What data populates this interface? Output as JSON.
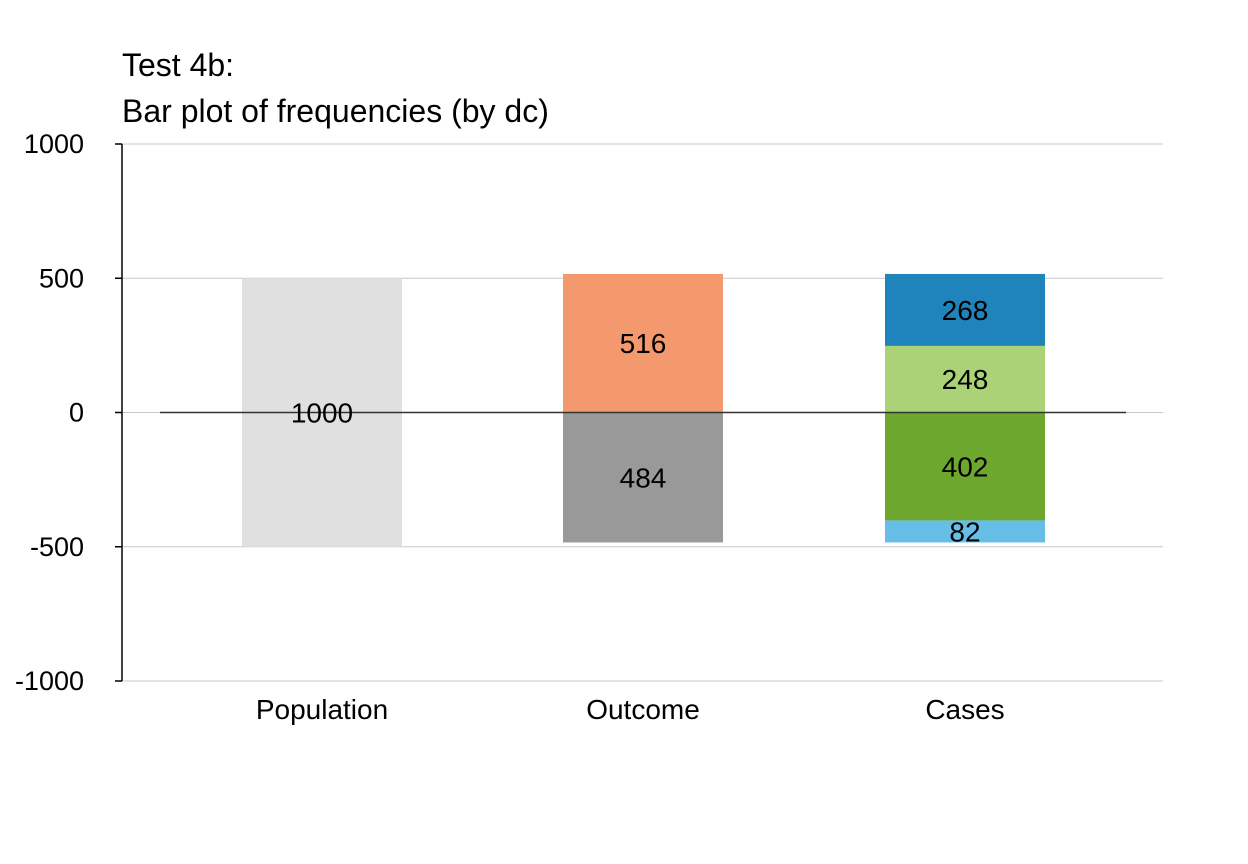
{
  "chart_data": {
    "type": "bar",
    "title": "Test 4b:",
    "subtitle": "Bar plot of frequencies (by dc)",
    "xlabel": "",
    "ylabel": "",
    "ylim": [
      -1000,
      1000
    ],
    "yticks": [
      1000,
      500,
      0,
      -500,
      -1000
    ],
    "ytick_labels": [
      "1000",
      "500",
      "0",
      "-500",
      "-1000"
    ],
    "grid": true,
    "legend": false,
    "categories": [
      "Population",
      "Outcome",
      "Cases"
    ],
    "bars": [
      {
        "category": "Population",
        "segments": [
          {
            "value": 1000,
            "label": "1000",
            "from": -500,
            "to": 500,
            "color": "#e0e0e0"
          }
        ]
      },
      {
        "category": "Outcome",
        "segments": [
          {
            "value": 516,
            "label": "516",
            "from": 0,
            "to": 516,
            "color": "#f4996e"
          },
          {
            "value": 484,
            "label": "484",
            "from": -484,
            "to": 0,
            "color": "#999999"
          }
        ]
      },
      {
        "category": "Cases",
        "segments": [
          {
            "value": 268,
            "label": "268",
            "from": 248,
            "to": 516,
            "color": "#1f83bc"
          },
          {
            "value": 248,
            "label": "248",
            "from": 0,
            "to": 248,
            "color": "#acd277"
          },
          {
            "value": 402,
            "label": "402",
            "from": -402,
            "to": 0,
            "color": "#6da72e"
          },
          {
            "value": 82,
            "label": "82",
            "from": -484,
            "to": -402,
            "color": "#66bde6"
          }
        ]
      }
    ]
  }
}
